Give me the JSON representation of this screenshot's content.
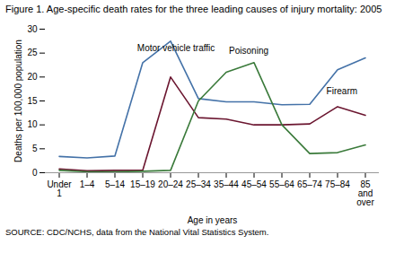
{
  "chart_data": {
    "type": "line",
    "title": "Figure 1. Age-specific death rates for the three leading causes of injury mortality: 2005",
    "xlabel": "Age in years",
    "ylabel": "Deaths per 100,000 population",
    "caption": "SOURCE: CDC/NCHS, data from the National Vital Statistics System.",
    "categories": [
      "Under\n1",
      "1–4",
      "5–14",
      "15–19",
      "20–24",
      "25–34",
      "35–44",
      "45–54",
      "55–64",
      "65–74",
      "75–84",
      "85\nand\nover"
    ],
    "series": [
      {
        "name": "Motor vehicle traffic",
        "color": "#4472a8",
        "values": [
          3.4,
          3.1,
          3.5,
          23.0,
          27.5,
          15.5,
          14.8,
          14.8,
          14.2,
          14.3,
          21.5,
          24.0
        ]
      },
      {
        "name": "Firearm",
        "color": "#6b1630",
        "values": [
          0.8,
          0.4,
          0.5,
          0.5,
          20.0,
          11.5,
          11.2,
          10.0,
          10.0,
          10.2,
          13.8,
          12.0
        ]
      },
      {
        "name": "Poisoning",
        "color": "#3a7a3a",
        "values": [
          0.5,
          0.2,
          0.2,
          0.3,
          0.5,
          15.0,
          21.0,
          23.0,
          10.0,
          4.0,
          4.2,
          5.8
        ]
      }
    ],
    "annotations": [
      {
        "text": "Motor vehicle traffic",
        "x": 2.8,
        "y": 25.5
      },
      {
        "text": "Poisoning",
        "x": 6.1,
        "y": 24.8
      },
      {
        "text": "Firearm",
        "x": 9.6,
        "y": 16.5
      }
    ],
    "ylim": [
      0,
      30
    ],
    "yticks": [
      0,
      5,
      10,
      15,
      20,
      25,
      30
    ],
    "grid": false
  }
}
